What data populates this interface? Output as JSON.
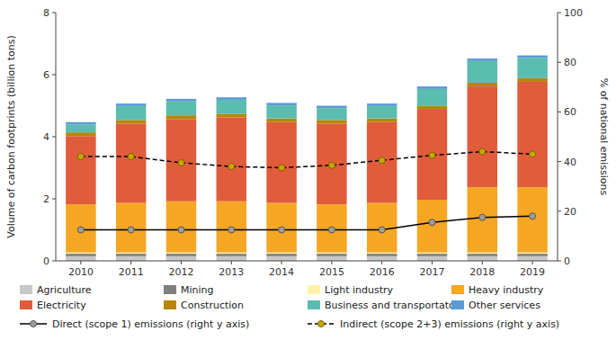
{
  "chart_data": {
    "type": "bar",
    "stacked": true,
    "categories": [
      "2010",
      "2011",
      "2012",
      "2013",
      "2014",
      "2015",
      "2016",
      "2017",
      "2018",
      "2019"
    ],
    "ylabel": "Volume of carbon footprints (billion tons)",
    "y2label": "% of national emissions",
    "ylim": [
      0,
      8
    ],
    "yticks": [
      0,
      2,
      4,
      6,
      8
    ],
    "y2lim": [
      0,
      100
    ],
    "y2ticks": [
      0,
      20,
      40,
      60,
      80,
      100
    ],
    "grid": false,
    "legend": "bottom",
    "series": [
      {
        "name": "Agriculture",
        "type": "bar",
        "color": "#c8c8c8",
        "values": [
          0.15,
          0.15,
          0.15,
          0.15,
          0.15,
          0.15,
          0.15,
          0.15,
          0.15,
          0.15
        ]
      },
      {
        "name": "Mining",
        "type": "bar",
        "color": "#7f7f7f",
        "values": [
          0.08,
          0.08,
          0.08,
          0.08,
          0.08,
          0.08,
          0.08,
          0.08,
          0.08,
          0.08
        ]
      },
      {
        "name": "Light industry",
        "type": "bar",
        "color": "#fff2a8",
        "values": [
          0.04,
          0.04,
          0.04,
          0.04,
          0.04,
          0.04,
          0.04,
          0.04,
          0.04,
          0.04
        ]
      },
      {
        "name": "Heavy industry",
        "type": "bar",
        "color": "#f5a623",
        "values": [
          1.55,
          1.6,
          1.65,
          1.65,
          1.6,
          1.55,
          1.6,
          1.7,
          2.1,
          2.1
        ]
      },
      {
        "name": "Electricity",
        "type": "bar",
        "color": "#e05c3a",
        "values": [
          2.2,
          2.55,
          2.65,
          2.7,
          2.6,
          2.6,
          2.6,
          2.9,
          3.25,
          3.4
        ]
      },
      {
        "name": "Construction",
        "type": "bar",
        "color": "#b8860b",
        "values": [
          0.12,
          0.12,
          0.12,
          0.12,
          0.12,
          0.12,
          0.12,
          0.12,
          0.12,
          0.12
        ]
      },
      {
        "name": "Business and transportaton",
        "type": "bar",
        "color": "#5bbcb0",
        "values": [
          0.25,
          0.45,
          0.45,
          0.45,
          0.42,
          0.38,
          0.4,
          0.55,
          0.7,
          0.65
        ]
      },
      {
        "name": "Other services",
        "type": "bar",
        "color": "#5b9bd5",
        "values": [
          0.08,
          0.08,
          0.08,
          0.08,
          0.08,
          0.08,
          0.08,
          0.08,
          0.08,
          0.08
        ]
      },
      {
        "name": "Direct (scope 1) emissions (right y axis)",
        "type": "line",
        "axis": "y2",
        "color": "#000000",
        "marker": "o",
        "line_style": "solid",
        "values": [
          12.5,
          12.5,
          12.5,
          12.5,
          12.5,
          12.5,
          12.5,
          15.5,
          17.5,
          18.0
        ]
      },
      {
        "name": "Indirect (scope 2+3) emissions (right y axis)",
        "type": "line",
        "axis": "y2",
        "color": "#000000",
        "marker": "o",
        "line_style": "dashed",
        "values": [
          42.0,
          42.0,
          39.5,
          38.0,
          37.5,
          38.5,
          40.5,
          42.5,
          44.0,
          43.0
        ]
      }
    ]
  }
}
